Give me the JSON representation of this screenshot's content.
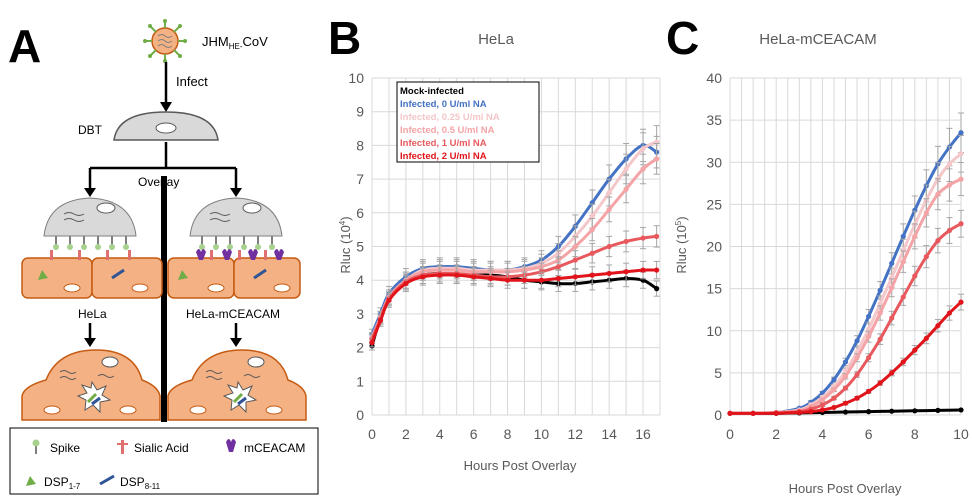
{
  "panels": {
    "a": {
      "letter": "A",
      "virus_label_main": "JHM",
      "virus_label_sub": "HE-",
      "virus_label_tail": "CoV",
      "infect_label": "Infect",
      "dbt_label": "DBT",
      "overlay_label": "Overlay",
      "left_cell_label": "HeLa",
      "right_cell_label": "HeLa-mCEACAM",
      "legend": {
        "spike": "Spike",
        "sialic": "Sialic Acid",
        "mceacam": "mCEACAM",
        "dsp1_main": "DSP",
        "dsp1_sub": "1-7",
        "dsp2_main": "DSP",
        "dsp2_sub": "8-11"
      }
    },
    "b": {
      "letter": "B"
    },
    "c": {
      "letter": "C"
    }
  },
  "colors": {
    "mock": "#000000",
    "na0": "#4472c4",
    "na025": "#f4c7ca",
    "na05": "#f4a3a6",
    "na1": "#e8595e",
    "na2": "#e0141a",
    "cell_fill": "#f4b183",
    "cell_stroke": "#c55a11",
    "dbt_fill": "#d9d9d9",
    "grid": "#d9d9d9",
    "axis_text": "#595959"
  },
  "chart_data": [
    {
      "type": "line",
      "title": "HeLa",
      "xlabel": "Hours Post Overlay",
      "ylabel": "Rluc (10",
      "ylabel_sup": "4",
      "ylabel_tail": ")",
      "xlim": [
        0,
        17
      ],
      "ylim": [
        0,
        10
      ],
      "xticks": [
        0,
        2,
        4,
        6,
        8,
        10,
        12,
        14,
        16
      ],
      "yticks": [
        0,
        1,
        2,
        3,
        4,
        5,
        6,
        7,
        8,
        9,
        10
      ],
      "grid": true,
      "legend_position": "top-left",
      "series": [
        {
          "name": "Mock-infected",
          "color": "#000000",
          "x": [
            0,
            0.5,
            1,
            2,
            3,
            4,
            5,
            6,
            7,
            8,
            9,
            10,
            11,
            12,
            13,
            14,
            15,
            16,
            16.8
          ],
          "y": [
            2.05,
            2.9,
            3.5,
            3.95,
            4.15,
            4.2,
            4.15,
            4.15,
            4.15,
            4.1,
            4.0,
            3.95,
            3.9,
            3.9,
            3.95,
            4.0,
            4.05,
            4.0,
            3.75
          ]
        },
        {
          "name": "Infected, 0 U/ml NA",
          "color": "#4472c4",
          "x": [
            0,
            0.5,
            1,
            2,
            3,
            4,
            5,
            6,
            7,
            8,
            9,
            10,
            11,
            12,
            13,
            14,
            15,
            16,
            16.8
          ],
          "y": [
            2.4,
            3.0,
            3.6,
            4.1,
            4.35,
            4.4,
            4.4,
            4.35,
            4.3,
            4.3,
            4.4,
            4.6,
            5.0,
            5.6,
            6.3,
            7.0,
            7.6,
            8.0,
            7.8
          ]
        },
        {
          "name": "Infected, 0.25 U/ml NA",
          "color": "#f4c7ca",
          "x": [
            0,
            0.5,
            1,
            2,
            3,
            4,
            5,
            6,
            7,
            8,
            9,
            10,
            11,
            12,
            13,
            14,
            15,
            16,
            16.8
          ],
          "y": [
            2.3,
            2.9,
            3.5,
            4.0,
            4.3,
            4.35,
            4.35,
            4.3,
            4.3,
            4.3,
            4.35,
            4.5,
            4.8,
            5.3,
            5.9,
            6.6,
            7.3,
            7.9,
            8.1
          ]
        },
        {
          "name": "Infected, 0.5 U/ml NA",
          "color": "#f4a3a6",
          "x": [
            0,
            0.5,
            1,
            2,
            3,
            4,
            5,
            6,
            7,
            8,
            9,
            10,
            11,
            12,
            13,
            14,
            15,
            16,
            16.8
          ],
          "y": [
            2.3,
            2.9,
            3.5,
            4.0,
            4.25,
            4.3,
            4.3,
            4.25,
            4.25,
            4.25,
            4.3,
            4.4,
            4.6,
            5.0,
            5.5,
            6.1,
            6.7,
            7.3,
            7.6
          ]
        },
        {
          "name": "Infected, 1 U/ml NA",
          "color": "#e8595e",
          "x": [
            0,
            0.5,
            1,
            2,
            3,
            4,
            5,
            6,
            7,
            8,
            9,
            10,
            11,
            12,
            13,
            14,
            15,
            16,
            16.8
          ],
          "y": [
            2.25,
            2.85,
            3.45,
            3.95,
            4.15,
            4.2,
            4.2,
            4.15,
            4.1,
            4.1,
            4.15,
            4.25,
            4.4,
            4.6,
            4.8,
            5.0,
            5.15,
            5.25,
            5.3
          ]
        },
        {
          "name": "Infected, 2 U/ml NA",
          "color": "#e0141a",
          "x": [
            0,
            0.5,
            1,
            2,
            3,
            4,
            5,
            6,
            7,
            8,
            9,
            10,
            11,
            12,
            13,
            14,
            15,
            16,
            16.8
          ],
          "y": [
            2.15,
            2.8,
            3.4,
            3.9,
            4.1,
            4.15,
            4.15,
            4.1,
            4.05,
            4.0,
            4.0,
            4.0,
            4.05,
            4.1,
            4.15,
            4.2,
            4.25,
            4.3,
            4.3
          ]
        }
      ]
    },
    {
      "type": "line",
      "title": "HeLa-mCEACAM",
      "xlabel": "Hours Post Overlay",
      "ylabel": "Rluc (10",
      "ylabel_sup": "5",
      "ylabel_tail": ")",
      "xlim": [
        0,
        10
      ],
      "ylim": [
        0,
        40
      ],
      "xticks": [
        0,
        2,
        4,
        6,
        8,
        10
      ],
      "yticks": [
        0,
        5,
        10,
        15,
        20,
        25,
        30,
        35,
        40
      ],
      "grid": true,
      "series": [
        {
          "name": "Mock-infected",
          "color": "#000000",
          "x": [
            0,
            1,
            2,
            3,
            4,
            5,
            6,
            7,
            8,
            9,
            10
          ],
          "y": [
            0.2,
            0.2,
            0.2,
            0.25,
            0.3,
            0.35,
            0.4,
            0.45,
            0.5,
            0.55,
            0.6
          ]
        },
        {
          "name": "Infected, 0 U/ml NA",
          "color": "#4472c4",
          "x": [
            0,
            1,
            2,
            3,
            3.5,
            4,
            4.5,
            5,
            5.5,
            6,
            6.5,
            7,
            7.5,
            8,
            8.5,
            9,
            9.5,
            10
          ],
          "y": [
            0.2,
            0.2,
            0.3,
            0.8,
            1.5,
            2.6,
            4.2,
            6.3,
            8.8,
            11.7,
            14.8,
            18.0,
            21.2,
            24.3,
            27.2,
            29.8,
            31.8,
            33.5
          ]
        },
        {
          "name": "Infected, 0.25 U/ml NA",
          "color": "#f4c7ca",
          "x": [
            0,
            1,
            2,
            3,
            3.5,
            4,
            4.5,
            5,
            5.5,
            6,
            6.5,
            7,
            7.5,
            8,
            8.5,
            9,
            9.5,
            10
          ],
          "y": [
            0.2,
            0.2,
            0.3,
            0.6,
            1.2,
            2.1,
            3.4,
            5.2,
            7.5,
            10.2,
            13.2,
            16.3,
            19.5,
            22.6,
            25.5,
            28.0,
            29.8,
            31.0
          ]
        },
        {
          "name": "Infected, 0.5 U/ml NA",
          "color": "#f4a3a6",
          "x": [
            0,
            1,
            2,
            3,
            3.5,
            4,
            4.5,
            5,
            5.5,
            6,
            6.5,
            7,
            7.5,
            8,
            8.5,
            9,
            9.5,
            10
          ],
          "y": [
            0.2,
            0.2,
            0.3,
            0.5,
            1.0,
            1.8,
            3.0,
            4.6,
            6.8,
            9.3,
            12.1,
            15.1,
            18.2,
            21.2,
            24.0,
            26.2,
            27.3,
            28.0
          ]
        },
        {
          "name": "Infected, 1 U/ml NA",
          "color": "#e8595e",
          "x": [
            0,
            1,
            2,
            3,
            3.5,
            4,
            4.5,
            5,
            5.5,
            6,
            6.5,
            7,
            7.5,
            8,
            8.5,
            9,
            9.5,
            10
          ],
          "y": [
            0.2,
            0.2,
            0.25,
            0.4,
            0.7,
            1.2,
            2.0,
            3.2,
            4.8,
            6.8,
            9.0,
            11.5,
            14.0,
            16.5,
            18.8,
            20.7,
            21.9,
            22.7
          ]
        },
        {
          "name": "Infected, 2 U/ml NA",
          "color": "#e0141a",
          "x": [
            0,
            1,
            2,
            3,
            3.5,
            4,
            4.5,
            5,
            5.5,
            6,
            6.5,
            7,
            7.5,
            8,
            8.5,
            9,
            9.5,
            10
          ],
          "y": [
            0.2,
            0.2,
            0.2,
            0.3,
            0.4,
            0.6,
            0.9,
            1.4,
            2.0,
            2.8,
            3.8,
            5.0,
            6.3,
            7.7,
            9.1,
            10.6,
            12.1,
            13.4
          ]
        }
      ]
    }
  ]
}
